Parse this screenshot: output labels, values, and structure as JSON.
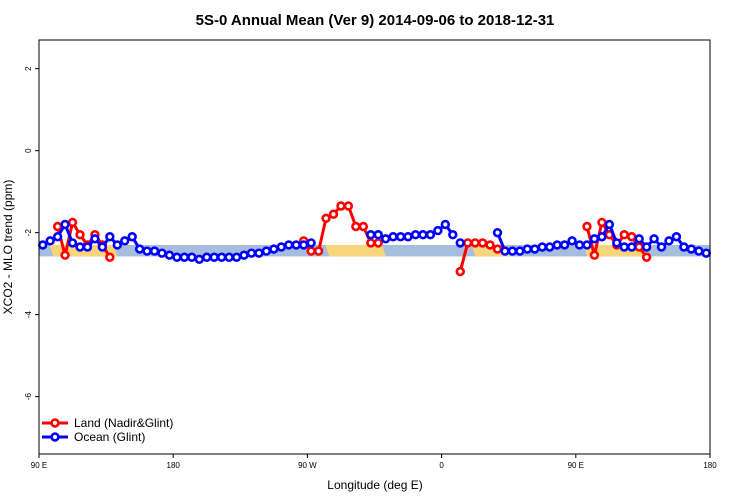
{
  "chart_data": {
    "type": "line",
    "title": "5S-0 Annual Mean (Ver 9)   2014-09-06 to 2018-12-31",
    "xlabel": "Longitude (deg E)",
    "ylabel": "XCO2 - MLO trend (ppm)",
    "xlim": [
      90,
      540
    ],
    "ylim": [
      -7.4,
      2.7
    ],
    "x_ticks": [
      {
        "value": 90,
        "label": "90 E"
      },
      {
        "value": 180,
        "label": "180"
      },
      {
        "value": 270,
        "label": "90 W"
      },
      {
        "value": 360,
        "label": "0"
      },
      {
        "value": 450,
        "label": "90 E"
      },
      {
        "value": 540,
        "label": "180"
      }
    ],
    "y_ticks": [
      {
        "value": 2,
        "label": "2"
      },
      {
        "value": 0,
        "label": "0"
      },
      {
        "value": -2,
        "label": "-2"
      },
      {
        "value": -4,
        "label": "-4"
      },
      {
        "value": -6,
        "label": "-6"
      }
    ],
    "legend_position": "bottom-left",
    "background_band": {
      "y_range": [
        -2.58,
        -2.3
      ],
      "color": "#a6bddb"
    },
    "land_bands": [
      {
        "x_range": [
          97,
          140
        ],
        "color": "#f8d57a"
      },
      {
        "x_range": [
          282,
          320
        ],
        "color": "#f8d57a"
      },
      {
        "x_range": [
          380,
          403
        ],
        "color": "#f8d57a"
      },
      {
        "x_range": [
          455,
          497
        ],
        "color": "#f8d57a"
      }
    ],
    "series": [
      {
        "name": "Land (Nadir&Glint)",
        "color": "#ff0000",
        "segments": [
          {
            "x": [
              102.5,
              107.5,
              112.5,
              117.5,
              122.5,
              127.5,
              132.5,
              137.5
            ],
            "y": [
              -1.85,
              -2.55,
              -1.75,
              -2.05,
              -2.3,
              -2.05,
              -2.3,
              -2.6
            ]
          },
          {
            "x": [
              267.5,
              272.5,
              277.5,
              282.5,
              287.5,
              292.5,
              297.5,
              302.5,
              307.5,
              312.5,
              317.5
            ],
            "y": [
              -2.2,
              -2.45,
              -2.45,
              -1.65,
              -1.55,
              -1.35,
              -1.35,
              -1.85,
              -1.85,
              -2.25,
              -2.25
            ]
          },
          {
            "x": [
              372.5,
              377.5,
              382.5,
              387.5,
              392.5,
              397.5
            ],
            "y": [
              -2.95,
              -2.25,
              -2.25,
              -2.25,
              -2.3,
              -2.4
            ]
          },
          {
            "x": [
              457.5,
              462.5,
              467.5,
              472.5,
              477.5,
              482.5,
              487.5,
              492.5,
              497.5
            ],
            "y": [
              -1.85,
              -2.55,
              -1.75,
              -2.05,
              -2.3,
              -2.05,
              -2.1,
              -2.35,
              -2.6
            ]
          }
        ]
      },
      {
        "name": "Ocean (Glint)",
        "color": "#0000ff",
        "segments": [
          {
            "x": [
              92.5,
              97.5,
              102.5,
              107.5,
              112.5,
              117.5,
              122.5,
              127.5,
              132.5,
              137.5,
              142.5,
              147.5,
              152.5,
              157.5,
              162.5,
              167.5,
              172.5,
              177.5,
              182.5,
              187.5,
              192.5,
              197.5,
              202.5,
              207.5,
              212.5,
              217.5,
              222.5,
              227.5,
              232.5,
              237.5,
              242.5,
              247.5,
              252.5,
              257.5,
              262.5,
              267.5,
              272.5
            ],
            "y": [
              -2.3,
              -2.2,
              -2.1,
              -1.8,
              -2.25,
              -2.35,
              -2.35,
              -2.15,
              -2.35,
              -2.1,
              -2.3,
              -2.2,
              -2.1,
              -2.4,
              -2.45,
              -2.45,
              -2.5,
              -2.55,
              -2.6,
              -2.6,
              -2.6,
              -2.65,
              -2.6,
              -2.6,
              -2.6,
              -2.6,
              -2.6,
              -2.55,
              -2.5,
              -2.5,
              -2.45,
              -2.4,
              -2.35,
              -2.3,
              -2.3,
              -2.3,
              -2.25
            ]
          },
          {
            "x": [
              312.5,
              317.5,
              322.5,
              327.5,
              332.5,
              337.5,
              342.5,
              347.5,
              352.5,
              357.5,
              362.5,
              367.5
            ],
            "y": [
              -2.05,
              -2.05,
              -2.15,
              -2.1,
              -2.1,
              -2.1,
              -2.05,
              -2.05,
              -2.05,
              -1.95,
              -1.8,
              -2.05
            ]
          },
          {
            "x": [
              372.5
            ],
            "y": [
              -2.25
            ]
          },
          {
            "x": [
              397.5,
              402.5,
              407.5,
              412.5,
              417.5,
              422.5,
              427.5,
              432.5,
              437.5,
              442.5,
              447.5,
              452.5,
              457.5,
              462.5,
              467.5,
              472.5,
              477.5,
              482.5,
              487.5,
              492.5,
              497.5,
              502.5,
              507.5,
              512.5,
              517.5,
              522.5,
              527.5,
              532.5,
              537.5
            ],
            "y": [
              -2.0,
              -2.45,
              -2.45,
              -2.45,
              -2.4,
              -2.4,
              -2.35,
              -2.35,
              -2.3,
              -2.3,
              -2.2,
              -2.3,
              -2.3,
              -2.15,
              -2.1,
              -1.8,
              -2.25,
              -2.35,
              -2.35,
              -2.15,
              -2.35,
              -2.15,
              -2.35,
              -2.2,
              -2.1,
              -2.35,
              -2.4,
              -2.45,
              -2.5
            ]
          }
        ]
      }
    ]
  }
}
